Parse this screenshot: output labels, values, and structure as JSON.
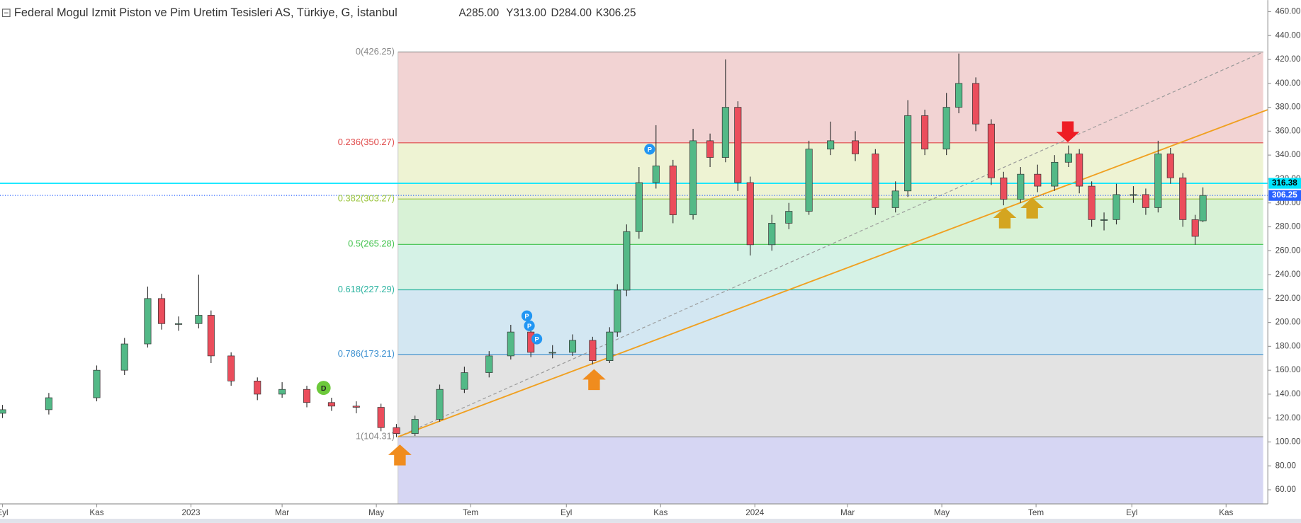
{
  "header": {
    "title": "Federal Mogul Izmit Piston ve Pim Uretim Tesisleri AS, Türkiye, G, İstanbul",
    "ohlc": [
      "A285.00",
      "Y313.00",
      "D284.00",
      "K306.25"
    ]
  },
  "markers": [
    "P",
    "P",
    "P",
    "P",
    "D"
  ],
  "chart_data": {
    "type": "candlestick",
    "x": [
      0,
      30,
      61,
      79,
      94,
      103,
      114,
      127,
      135,
      148,
      165,
      181,
      197,
      213,
      229,
      245,
      255,
      267,
      283,
      299,
      315,
      329,
      342,
      356,
      369,
      382,
      393,
      398,
      404,
      412,
      423,
      434,
      447,
      458,
      468,
      476,
      484,
      498,
      509,
      522,
      536,
      552,
      565,
      578,
      586,
      597,
      611,
      619,
      630,
      640,
      648,
      659,
      670,
      681,
      690,
      697,
      705,
      713,
      721,
      732,
      740,
      748,
      756,
      764,
      772,
      777
    ],
    "open": [
      124,
      127,
      137,
      160,
      182,
      220,
      199,
      199,
      206,
      172,
      151,
      140,
      144,
      133,
      130,
      129,
      112,
      107,
      119,
      144,
      158,
      172,
      192,
      175,
      175,
      185,
      168,
      192,
      227,
      276,
      317,
      331,
      290,
      352,
      338,
      380,
      317,
      265,
      283,
      293,
      345,
      352,
      341,
      296,
      310,
      373,
      345,
      380,
      400,
      366,
      321,
      303,
      324,
      314,
      334,
      341,
      314,
      286,
      286,
      307,
      307,
      296,
      341,
      321,
      286,
      285
    ],
    "high": [
      131,
      141,
      164,
      187,
      230,
      224,
      205,
      240,
      210,
      175,
      154,
      150,
      147,
      137,
      134,
      132,
      115,
      122,
      148,
      163,
      176,
      198,
      195,
      181,
      190,
      188,
      196,
      232,
      282,
      330,
      365,
      336,
      362,
      358,
      420,
      385,
      322,
      290,
      300,
      352,
      368,
      360,
      345,
      318,
      386,
      378,
      392,
      425,
      405,
      370,
      326,
      330,
      332,
      340,
      348,
      345,
      318,
      292,
      316,
      314,
      312,
      352,
      346,
      325,
      290,
      313
    ],
    "low": [
      120,
      123,
      134,
      156,
      179,
      194,
      193,
      195,
      166,
      147,
      135,
      137,
      129,
      126,
      124,
      109,
      104,
      105,
      117,
      141,
      154,
      169,
      171,
      170,
      172,
      165,
      166,
      188,
      222,
      270,
      312,
      283,
      286,
      330,
      334,
      310,
      256,
      260,
      278,
      290,
      340,
      335,
      290,
      292,
      305,
      340,
      340,
      375,
      360,
      315,
      298,
      300,
      309,
      310,
      330,
      308,
      280,
      277,
      282,
      300,
      290,
      292,
      316,
      280,
      265,
      284
    ],
    "close": [
      127,
      137,
      160,
      182,
      220,
      199,
      199,
      206,
      172,
      151,
      140,
      144,
      133,
      130,
      129,
      112,
      107,
      119,
      144,
      158,
      172,
      192,
      175,
      175,
      185,
      168,
      192,
      227,
      276,
      317,
      331,
      290,
      352,
      338,
      380,
      317,
      265,
      283,
      293,
      345,
      352,
      341,
      296,
      310,
      373,
      345,
      380,
      400,
      366,
      321,
      303,
      324,
      314,
      334,
      341,
      314,
      286,
      286,
      307,
      307,
      296,
      341,
      321,
      286,
      272,
      306.25
    ],
    "up_color": "#53b987",
    "down_color": "#eb4d5c",
    "xlim": [
      -1.6,
      819
    ],
    "xticks": [
      {
        "value": 0,
        "label": "Eyl"
      },
      {
        "value": 61,
        "label": "Kas"
      },
      {
        "value": 122,
        "label": "2023"
      },
      {
        "value": 181,
        "label": "Mar"
      },
      {
        "value": 242,
        "label": "May"
      },
      {
        "value": 303,
        "label": "Tem"
      },
      {
        "value": 365,
        "label": "Eyl"
      },
      {
        "value": 426,
        "label": "Kas"
      },
      {
        "value": 487,
        "label": "2024"
      },
      {
        "value": 547,
        "label": "Mar"
      },
      {
        "value": 608,
        "label": "May"
      },
      {
        "value": 669,
        "label": "Tem"
      },
      {
        "value": 731,
        "label": "Eyl"
      },
      {
        "value": 792,
        "label": "Kas"
      }
    ],
    "ylim": [
      48.2,
      469.7
    ],
    "yticks": [
      {
        "value": 60,
        "label": "60.00"
      },
      {
        "value": 80,
        "label": "80.00"
      },
      {
        "value": 100,
        "label": "100.00"
      },
      {
        "value": 120,
        "label": "120.00"
      },
      {
        "value": 140,
        "label": "140.00"
      },
      {
        "value": 160,
        "label": "160.00"
      },
      {
        "value": 180,
        "label": "180.00"
      },
      {
        "value": 200,
        "label": "200.00"
      },
      {
        "value": 220,
        "label": "220.00"
      },
      {
        "value": 240,
        "label": "240.00"
      },
      {
        "value": 260,
        "label": "260.00"
      },
      {
        "value": 280,
        "label": "280.00"
      },
      {
        "value": 300,
        "label": "300.00"
      },
      {
        "value": 320,
        "label": "320.00"
      },
      {
        "value": 340,
        "label": "340.00"
      },
      {
        "value": 360,
        "label": "360.00"
      },
      {
        "value": 380,
        "label": "380.00"
      },
      {
        "value": 400,
        "label": "400.00"
      },
      {
        "value": 420,
        "label": "420.00"
      },
      {
        "value": 440,
        "label": "440.00"
      },
      {
        "value": 460,
        "label": "460.00"
      }
    ],
    "fib_x": [
      256,
      816
    ],
    "fib_levels": [
      {
        "label": "0(426.25)",
        "value": 426.25,
        "color": "#888888",
        "fill": "#f2d3d3"
      },
      {
        "label": "0.236(350.27)",
        "value": 350.27,
        "color": "#e04848",
        "fill": "#eef3d3"
      },
      {
        "label": "0.382(303.27)",
        "value": 303.27,
        "color": "#9bc53d",
        "fill": "#d8f2d6"
      },
      {
        "label": "0.5(265.28)",
        "value": 265.28,
        "color": "#3fc24a",
        "fill": "#d5f2e6"
      },
      {
        "label": "0.618(227.29)",
        "value": 227.29,
        "color": "#2bb3a0",
        "fill": "#d3e7f2"
      },
      {
        "label": "0.786(173.21)",
        "value": 173.21,
        "color": "#3a8fd0",
        "fill": "#e3e3e3"
      },
      {
        "label": "1(104.31)",
        "value": 104.31,
        "color": "#888888",
        "fill": "#d6d6f3"
      }
    ],
    "trendlines": [
      {
        "x": [
          256,
          816
        ],
        "y": [
          104.31,
          426.25
        ],
        "color": "#999999",
        "style": "dashed"
      },
      {
        "x": [
          256,
          819
        ],
        "y": [
          104.31,
          378
        ],
        "color": "#f0a020",
        "style": "solid"
      }
    ],
    "price_lines": [
      {
        "value": 316.38,
        "color": "#00e5ff",
        "style": "solid"
      },
      {
        "value": 306.25,
        "color": "#2962ff",
        "style": "dotted"
      }
    ]
  }
}
